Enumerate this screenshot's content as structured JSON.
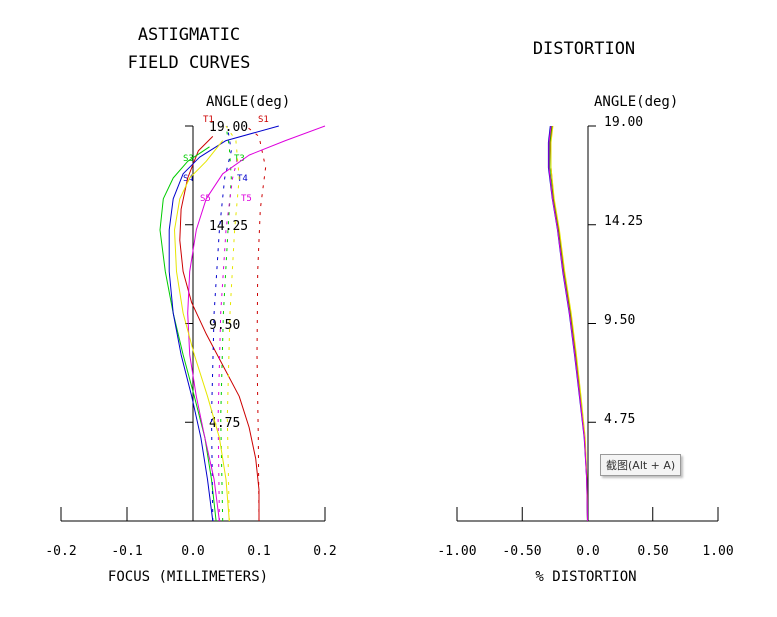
{
  "tooltip": "截图(Alt + A)",
  "chart_data": [
    {
      "type": "line",
      "title": [
        "ASTIGMATIC",
        "FIELD CURVES"
      ],
      "ylabel": "ANGLE(deg)",
      "xlabel": "FOCUS (MILLIMETERS)",
      "xlim": [
        -0.2,
        0.2
      ],
      "ylim": [
        0,
        19.0
      ],
      "x_ticks": [
        "-0.2",
        "-0.1",
        "0.0",
        "0.1",
        "0.2"
      ],
      "y_ticks": [
        "19.00",
        "14.25",
        "9.50",
        "4.75"
      ],
      "series": [
        {
          "name": "S1",
          "color": "#cc0000",
          "style": "solid",
          "points": [
            [
              0.1,
              0
            ],
            [
              0.1,
              1.5
            ],
            [
              0.095,
              3
            ],
            [
              0.085,
              4.5
            ],
            [
              0.07,
              6
            ],
            [
              0.045,
              7.5
            ],
            [
              0.02,
              9
            ],
            [
              -0.002,
              10.5
            ],
            [
              -0.015,
              12
            ],
            [
              -0.02,
              13.5
            ],
            [
              -0.018,
              15
            ],
            [
              -0.008,
              16.5
            ],
            [
              0.008,
              17.8
            ],
            [
              0.03,
              18.5
            ]
          ]
        },
        {
          "name": "T1",
          "color": "#cc0000",
          "style": "dashed",
          "points": [
            [
              0.1,
              0
            ],
            [
              0.099,
              4
            ],
            [
              0.097,
              8
            ],
            [
              0.098,
              12
            ],
            [
              0.102,
              15
            ],
            [
              0.11,
              17
            ],
            [
              0.1,
              18.5
            ],
            [
              0.08,
              19
            ]
          ]
        },
        {
          "name": "S3",
          "color": "#00cc00",
          "style": "solid",
          "points": [
            [
              0.035,
              0
            ],
            [
              0.028,
              2
            ],
            [
              0.018,
              4
            ],
            [
              0.002,
              6
            ],
            [
              -0.015,
              8
            ],
            [
              -0.03,
              10
            ],
            [
              -0.042,
              12
            ],
            [
              -0.05,
              14
            ],
            [
              -0.045,
              15.5
            ],
            [
              -0.03,
              16.5
            ],
            [
              -0.008,
              17.3
            ],
            [
              0.025,
              18
            ]
          ]
        },
        {
          "name": "T3",
          "color": "#00cc00",
          "style": "dashed",
          "points": [
            [
              0.045,
              0
            ],
            [
              0.042,
              5
            ],
            [
              0.046,
              10
            ],
            [
              0.053,
              14
            ],
            [
              0.058,
              16.5
            ],
            [
              0.055,
              18
            ],
            [
              0.05,
              19
            ]
          ]
        },
        {
          "name": "S4",
          "color": "#0000cc",
          "style": "solid",
          "points": [
            [
              0.03,
              0
            ],
            [
              0.022,
              2
            ],
            [
              0.012,
              4
            ],
            [
              -0.002,
              6
            ],
            [
              -0.018,
              8
            ],
            [
              -0.03,
              10
            ],
            [
              -0.036,
              12
            ],
            [
              -0.036,
              14
            ],
            [
              -0.03,
              15.5
            ],
            [
              -0.015,
              16.7
            ],
            [
              0.01,
              17.5
            ],
            [
              0.05,
              18.3
            ],
            [
              0.13,
              19
            ]
          ]
        },
        {
          "name": "T4",
          "color": "#0000cc",
          "style": "dashed",
          "points": [
            [
              0.03,
              0
            ],
            [
              0.028,
              5
            ],
            [
              0.032,
              10
            ],
            [
              0.04,
              14
            ],
            [
              0.048,
              16.5
            ],
            [
              0.058,
              17.8
            ],
            [
              0.052,
              19
            ]
          ]
        },
        {
          "name": "S5",
          "color": "#dd00dd",
          "style": "solid",
          "points": [
            [
              0.04,
              0
            ],
            [
              0.032,
              2
            ],
            [
              0.018,
              4
            ],
            [
              0.005,
              6
            ],
            [
              -0.005,
              8
            ],
            [
              -0.008,
              10
            ],
            [
              -0.005,
              12
            ],
            [
              0.005,
              14
            ],
            [
              0.02,
              15.5
            ],
            [
              0.045,
              16.7
            ],
            [
              0.085,
              17.6
            ],
            [
              0.14,
              18.3
            ],
            [
              0.2,
              19
            ]
          ]
        },
        {
          "name": "T5",
          "color": "#dd00dd",
          "style": "dashed",
          "points": [
            [
              0.04,
              0
            ],
            [
              0.038,
              5
            ],
            [
              0.042,
              10
            ],
            [
              0.05,
              14
            ],
            [
              0.06,
              16.5
            ],
            [
              0.068,
              17.5
            ]
          ]
        },
        {
          "name": "",
          "color": "#e6e600",
          "style": "solid",
          "points": [
            [
              0.055,
              0
            ],
            [
              0.05,
              2
            ],
            [
              0.04,
              4
            ],
            [
              0.022,
              6
            ],
            [
              0.002,
              8
            ],
            [
              -0.015,
              10
            ],
            [
              -0.025,
              12
            ],
            [
              -0.028,
              14
            ],
            [
              -0.02,
              15.5
            ],
            [
              -0.005,
              16.5
            ],
            [
              0.02,
              17.3
            ],
            [
              0.045,
              18.3
            ]
          ]
        },
        {
          "name": "",
          "color": "#e6e600",
          "style": "dashed",
          "points": [
            [
              0.055,
              0
            ],
            [
              0.052,
              5
            ],
            [
              0.056,
              10
            ],
            [
              0.063,
              14
            ],
            [
              0.07,
              16.5
            ],
            [
              0.065,
              18.3
            ],
            [
              0.05,
              19
            ]
          ]
        }
      ],
      "annotations": [
        "T1",
        "S1",
        "S3",
        "T3",
        "S4",
        "T4",
        "S5",
        "T5"
      ]
    },
    {
      "type": "line",
      "title": "DISTORTION",
      "ylabel": "ANGLE(deg)",
      "xlabel": "% DISTORTION",
      "xlim": [
        -1.0,
        1.0
      ],
      "ylim": [
        0,
        19.0
      ],
      "x_ticks": [
        "-1.00",
        "-0.50",
        "0.0",
        "0.50",
        "1.00"
      ],
      "y_ticks": [
        "19.00",
        "14.25",
        "9.50",
        "4.75"
      ],
      "series": [
        {
          "color": "#cc0000",
          "points": [
            [
              0,
              0
            ],
            [
              -0.005,
              2
            ],
            [
              -0.02,
              4
            ],
            [
              -0.055,
              6
            ],
            [
              -0.09,
              8
            ],
            [
              -0.13,
              10
            ],
            [
              -0.18,
              12
            ],
            [
              -0.22,
              14
            ],
            [
              -0.26,
              15.5
            ],
            [
              -0.28,
              17
            ],
            [
              -0.285,
              18.2
            ],
            [
              -0.27,
              19
            ]
          ]
        },
        {
          "color": "#00cc00",
          "points": [
            [
              0,
              0
            ],
            [
              -0.005,
              2
            ],
            [
              -0.022,
              4
            ],
            [
              -0.058,
              6
            ],
            [
              -0.095,
              8
            ],
            [
              -0.135,
              10
            ],
            [
              -0.185,
              12
            ],
            [
              -0.225,
              14
            ],
            [
              -0.265,
              15.5
            ],
            [
              -0.29,
              17
            ],
            [
              -0.29,
              18.2
            ],
            [
              -0.275,
              19
            ]
          ]
        },
        {
          "color": "#e6e600",
          "points": [
            [
              0,
              0
            ],
            [
              -0.004,
              2
            ],
            [
              -0.018,
              4
            ],
            [
              -0.05,
              6
            ],
            [
              -0.085,
              8
            ],
            [
              -0.125,
              10
            ],
            [
              -0.175,
              12
            ],
            [
              -0.215,
              14
            ],
            [
              -0.255,
              15.5
            ],
            [
              -0.28,
              17
            ],
            [
              -0.28,
              18.2
            ],
            [
              -0.265,
              19
            ]
          ]
        },
        {
          "color": "#0000cc",
          "points": [
            [
              0,
              0
            ],
            [
              -0.006,
              2
            ],
            [
              -0.025,
              4
            ],
            [
              -0.062,
              6
            ],
            [
              -0.1,
              8
            ],
            [
              -0.14,
              10
            ],
            [
              -0.19,
              12
            ],
            [
              -0.23,
              14
            ],
            [
              -0.27,
              15.5
            ],
            [
              -0.3,
              17
            ],
            [
              -0.3,
              18.2
            ],
            [
              -0.285,
              19
            ]
          ]
        },
        {
          "color": "#dd00dd",
          "points": [
            [
              0,
              0
            ],
            [
              -0.006,
              2
            ],
            [
              -0.024,
              4
            ],
            [
              -0.06,
              6
            ],
            [
              -0.097,
              8
            ],
            [
              -0.138,
              10
            ],
            [
              -0.188,
              12
            ],
            [
              -0.228,
              14
            ],
            [
              -0.268,
              15.5
            ],
            [
              -0.295,
              17
            ],
            [
              -0.295,
              18.2
            ],
            [
              -0.28,
              19
            ]
          ]
        }
      ]
    }
  ]
}
